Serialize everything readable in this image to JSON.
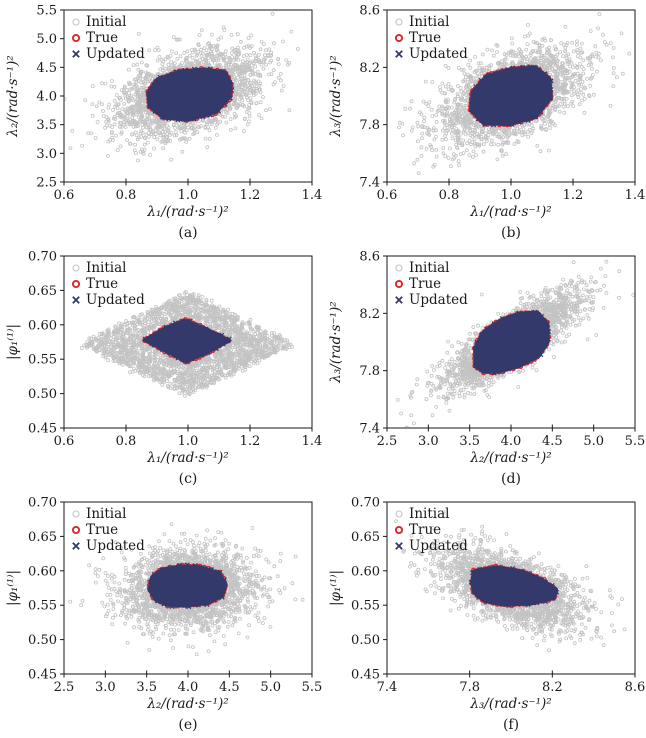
{
  "figure": {
    "background": "#ffffff",
    "description": "Scatter-plot matrix of modal parameter samples: Initial, True and Updated distributions"
  },
  "colors": {
    "initial": "#c3c3c3",
    "true": "#e0262d",
    "updated": "#333a6b",
    "axis": "#1a1a1a"
  },
  "legend": {
    "items": [
      "Initial",
      "True",
      "Updated"
    ]
  },
  "chart_data": [
    {
      "type": "scatter",
      "caption": "(a)",
      "xlabel": "λ₁/(rad·s⁻¹)²",
      "ylabel": "λ₂/(rad·s⁻¹)²",
      "xlim": [
        0.6,
        1.4
      ],
      "ylim": [
        2.5,
        5.5
      ],
      "xticks": [
        "0.6",
        "0.8",
        "1.0",
        "1.2",
        "1.4"
      ],
      "yticks": [
        "2.5",
        "3.0",
        "3.5",
        "4.0",
        "4.5",
        "5.0",
        "5.5"
      ],
      "grid": false,
      "legend_position": "top-left",
      "series": [
        {
          "name": "Initial",
          "marker": "open-circle",
          "color": "#c3c3c3",
          "dist": "gaussian",
          "n": 2600,
          "cx": 1.0,
          "cy": 4.05,
          "sx": 0.115,
          "sy": 0.37,
          "rho": 0.45,
          "seed": 11
        },
        {
          "name": "True",
          "marker": "bold-open-circle",
          "color": "#e0262d",
          "role": "boundary-ring"
        },
        {
          "name": "Updated",
          "marker": "x-cross",
          "color": "#333a6b",
          "role": "region",
          "hull": [
            [
              0.875,
              3.82
            ],
            [
              0.87,
              4.06
            ],
            [
              0.9,
              4.29
            ],
            [
              0.97,
              4.43
            ],
            [
              1.05,
              4.47
            ],
            [
              1.12,
              4.42
            ],
            [
              1.14,
              4.22
            ],
            [
              1.135,
              3.97
            ],
            [
              1.09,
              3.71
            ],
            [
              1.0,
              3.58
            ],
            [
              0.92,
              3.62
            ]
          ]
        }
      ]
    },
    {
      "type": "scatter",
      "caption": "(b)",
      "xlabel": "λ₁/(rad·s⁻¹)²",
      "ylabel": "λ₃/(rad·s⁻¹)²",
      "xlim": [
        0.6,
        1.4
      ],
      "ylim": [
        7.4,
        8.6
      ],
      "xticks": [
        "0.6",
        "0.8",
        "1.0",
        "1.2",
        "1.4"
      ],
      "yticks": [
        "7.4",
        "7.8",
        "8.2",
        "8.6"
      ],
      "grid": false,
      "legend_position": "top-left",
      "series": [
        {
          "name": "Initial",
          "marker": "open-circle",
          "color": "#c3c3c3",
          "dist": "gaussian",
          "n": 2600,
          "cx": 1.0,
          "cy": 8.0,
          "sx": 0.115,
          "sy": 0.165,
          "rho": 0.55,
          "seed": 22
        },
        {
          "name": "True",
          "marker": "bold-open-circle",
          "color": "#e0262d",
          "role": "boundary-ring"
        },
        {
          "name": "Updated",
          "marker": "x-cross",
          "color": "#333a6b",
          "role": "region",
          "hull": [
            [
              0.87,
              7.9
            ],
            [
              0.875,
              8.03
            ],
            [
              0.92,
              8.14
            ],
            [
              1.0,
              8.19
            ],
            [
              1.08,
              8.2
            ],
            [
              1.125,
              8.12
            ],
            [
              1.13,
              7.99
            ],
            [
              1.08,
              7.85
            ],
            [
              0.99,
              7.8
            ],
            [
              0.91,
              7.81
            ]
          ]
        }
      ]
    },
    {
      "type": "scatter",
      "caption": "(c)",
      "xlabel": "λ₁/(rad·s⁻¹)²",
      "ylabel": "|φ₁⁽¹⁾|",
      "xlim": [
        0.6,
        1.4
      ],
      "ylim": [
        0.45,
        0.7
      ],
      "xticks": [
        "0.6",
        "0.8",
        "1.0",
        "1.2",
        "1.4"
      ],
      "yticks": [
        "0.45",
        "0.50",
        "0.55",
        "0.60",
        "0.65",
        "0.70"
      ],
      "grid": false,
      "legend_position": "top-left",
      "series": [
        {
          "name": "Initial",
          "marker": "open-circle",
          "color": "#c3c3c3",
          "dist": "diamond",
          "n": 2600,
          "cx": 1.0,
          "cy": 0.572,
          "rx": 0.345,
          "ry": 0.075,
          "seed": 33
        },
        {
          "name": "True",
          "marker": "bold-open-circle",
          "color": "#e0262d",
          "role": "boundary-ring"
        },
        {
          "name": "Updated",
          "marker": "x-cross",
          "color": "#333a6b",
          "role": "region",
          "hull": [
            [
              0.86,
              0.578
            ],
            [
              0.925,
              0.595
            ],
            [
              0.99,
              0.607
            ],
            [
              1.06,
              0.594
            ],
            [
              1.135,
              0.577
            ],
            [
              1.065,
              0.56
            ],
            [
              0.995,
              0.546
            ],
            [
              0.925,
              0.562
            ]
          ]
        }
      ]
    },
    {
      "type": "scatter",
      "caption": "(d)",
      "xlabel": "λ₂/(rad·s⁻¹)²",
      "ylabel": "λ₃/(rad·s⁻¹)²",
      "xlim": [
        2.5,
        5.5
      ],
      "ylim": [
        7.4,
        8.6
      ],
      "xticks": [
        "2.5",
        "3.0",
        "3.5",
        "4.0",
        "4.5",
        "5.0",
        "5.5"
      ],
      "yticks": [
        "7.4",
        "7.8",
        "8.2",
        "8.6"
      ],
      "grid": false,
      "legend_position": "top-left",
      "series": [
        {
          "name": "Initial",
          "marker": "open-circle",
          "color": "#c3c3c3",
          "dist": "gaussian",
          "n": 2600,
          "cx": 4.0,
          "cy": 8.0,
          "sx": 0.4,
          "sy": 0.165,
          "rho": 0.82,
          "seed": 44
        },
        {
          "name": "True",
          "marker": "bold-open-circle",
          "color": "#e0262d",
          "role": "boundary-ring"
        },
        {
          "name": "Updated",
          "marker": "x-cross",
          "color": "#333a6b",
          "role": "region",
          "hull": [
            [
              3.57,
              7.83
            ],
            [
              3.56,
              7.96
            ],
            [
              3.66,
              8.07
            ],
            [
              3.86,
              8.15
            ],
            [
              4.1,
              8.2
            ],
            [
              4.32,
              8.21
            ],
            [
              4.44,
              8.13
            ],
            [
              4.45,
              8.0
            ],
            [
              4.34,
              7.9
            ],
            [
              4.1,
              7.83
            ],
            [
              3.85,
              7.79
            ],
            [
              3.67,
              7.79
            ]
          ]
        }
      ]
    },
    {
      "type": "scatter",
      "caption": "(e)",
      "xlabel": "λ₂/(rad·s⁻¹)²",
      "ylabel": "|φ₁⁽¹⁾|",
      "xlim": [
        2.5,
        5.5
      ],
      "ylim": [
        0.45,
        0.7
      ],
      "xticks": [
        "2.5",
        "3.0",
        "3.5",
        "4.0",
        "4.5",
        "5.0",
        "5.5"
      ],
      "yticks": [
        "0.45",
        "0.50",
        "0.55",
        "0.60",
        "0.65",
        "0.70"
      ],
      "grid": false,
      "legend_position": "top-left",
      "series": [
        {
          "name": "Initial",
          "marker": "open-circle",
          "color": "#c3c3c3",
          "dist": "gaussian",
          "n": 2600,
          "cx": 4.0,
          "cy": 0.574,
          "sx": 0.4,
          "sy": 0.027,
          "rho": 0.05,
          "seed": 55
        },
        {
          "name": "True",
          "marker": "bold-open-circle",
          "color": "#e0262d",
          "role": "boundary-ring"
        },
        {
          "name": "Updated",
          "marker": "x-cross",
          "color": "#333a6b",
          "role": "region",
          "hull": [
            [
              3.53,
              0.573
            ],
            [
              3.56,
              0.591
            ],
            [
              3.68,
              0.602
            ],
            [
              3.9,
              0.607
            ],
            [
              4.15,
              0.606
            ],
            [
              4.38,
              0.597
            ],
            [
              4.46,
              0.581
            ],
            [
              4.42,
              0.564
            ],
            [
              4.25,
              0.553
            ],
            [
              4.0,
              0.549
            ],
            [
              3.74,
              0.55
            ],
            [
              3.6,
              0.558
            ]
          ]
        }
      ]
    },
    {
      "type": "scatter",
      "caption": "(f)",
      "xlabel": "λ₃/(rad·s⁻¹)²",
      "ylabel": "|φ₁⁽¹⁾|",
      "xlim": [
        7.4,
        8.6
      ],
      "ylim": [
        0.45,
        0.7
      ],
      "xticks": [
        "7.4",
        "7.8",
        "8.2",
        "8.6"
      ],
      "yticks": [
        "0.45",
        "0.50",
        "0.55",
        "0.60",
        "0.65",
        "0.70"
      ],
      "grid": false,
      "legend_position": "top-left",
      "series": [
        {
          "name": "Initial",
          "marker": "open-circle",
          "color": "#c3c3c3",
          "dist": "gaussian",
          "n": 2600,
          "cx": 8.0,
          "cy": 0.574,
          "sx": 0.165,
          "sy": 0.027,
          "rho": -0.55,
          "seed": 66
        },
        {
          "name": "True",
          "marker": "bold-open-circle",
          "color": "#e0262d",
          "role": "boundary-ring"
        },
        {
          "name": "Updated",
          "marker": "x-cross",
          "color": "#333a6b",
          "role": "region",
          "hull": [
            [
              7.81,
              0.584
            ],
            [
              7.82,
              0.6
            ],
            [
              7.93,
              0.606
            ],
            [
              8.05,
              0.6
            ],
            [
              8.15,
              0.588
            ],
            [
              8.22,
              0.573
            ],
            [
              8.21,
              0.56
            ],
            [
              8.1,
              0.552
            ],
            [
              7.97,
              0.55
            ],
            [
              7.87,
              0.556
            ],
            [
              7.82,
              0.568
            ]
          ]
        }
      ]
    }
  ]
}
